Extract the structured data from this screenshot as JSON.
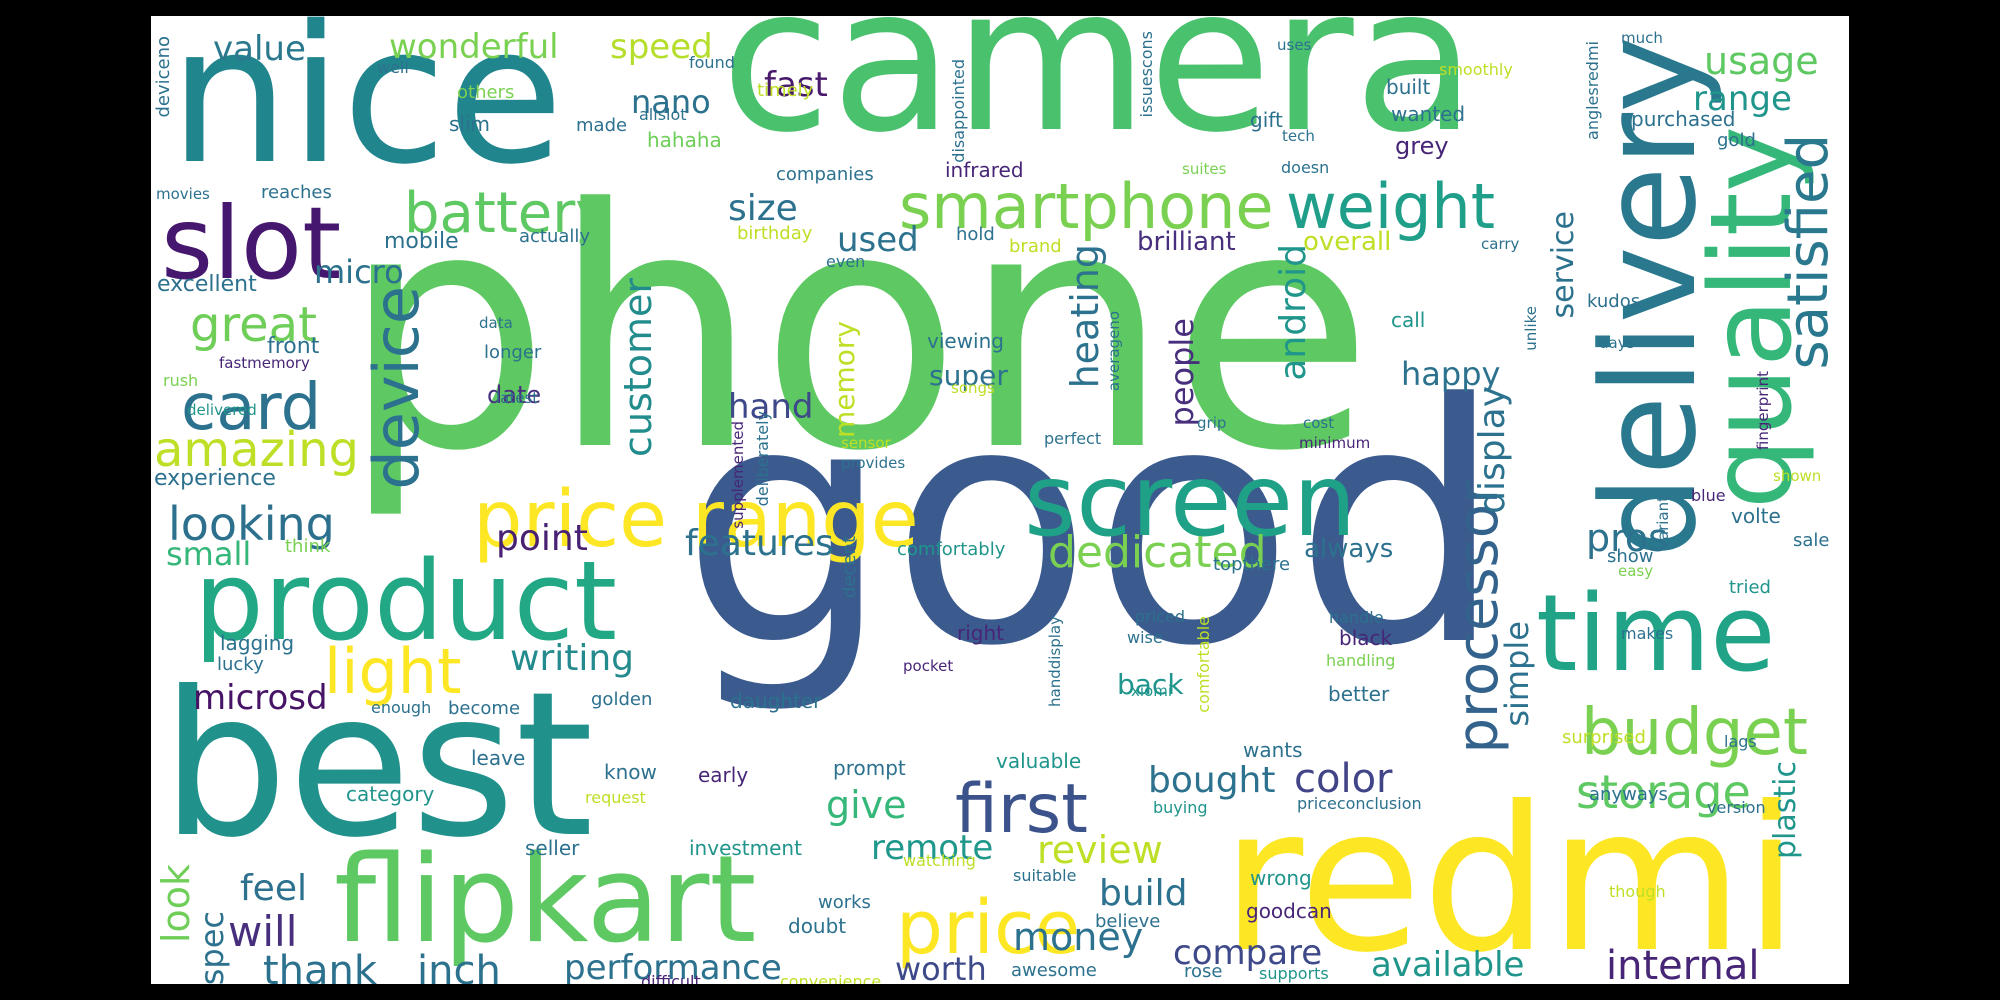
{
  "palette": {
    "yellow": "#fde725",
    "lime": "#b5de2b",
    "lightgreen": "#6ece58",
    "green": "#35b779",
    "teal": "#1f9e89",
    "deepteal": "#26828e",
    "blue": "#31688e",
    "indigo": "#3e4989",
    "purple": "#482878",
    "darkpurple": "#440154"
  },
  "words": [
    {
      "id": "phone",
      "text": "phone"
    },
    {
      "id": "good",
      "text": "good"
    },
    {
      "id": "camera",
      "text": "camera"
    },
    {
      "id": "nice",
      "text": "nice"
    },
    {
      "id": "best",
      "text": "best"
    },
    {
      "id": "redmi",
      "text": "redmi"
    },
    {
      "id": "delivery",
      "text": "delivery"
    },
    {
      "id": "quality",
      "text": "quality"
    },
    {
      "id": "flipkart",
      "text": "flipkart"
    },
    {
      "id": "product",
      "text": "product"
    },
    {
      "id": "screen",
      "text": "screen"
    },
    {
      "id": "price_range",
      "text": "price range"
    },
    {
      "id": "time",
      "text": "time"
    },
    {
      "id": "slot",
      "text": "slot"
    },
    {
      "id": "smartphone",
      "text": "smartphone"
    },
    {
      "id": "weight",
      "text": "weight"
    },
    {
      "id": "battery",
      "text": "battery"
    },
    {
      "id": "device",
      "text": "device"
    },
    {
      "id": "card",
      "text": "card"
    },
    {
      "id": "budget",
      "text": "budget"
    },
    {
      "id": "satisfied",
      "text": "satisfied"
    },
    {
      "id": "processor",
      "text": "processor"
    },
    {
      "id": "price",
      "text": "price"
    },
    {
      "id": "first",
      "text": "first"
    },
    {
      "id": "light",
      "text": "light"
    },
    {
      "id": "storage",
      "text": "storage"
    },
    {
      "id": "amazing",
      "text": "amazing"
    },
    {
      "id": "great",
      "text": "great"
    },
    {
      "id": "looking",
      "text": "looking"
    },
    {
      "id": "customer",
      "text": "customer"
    },
    {
      "id": "dedicated",
      "text": "dedicated"
    },
    {
      "id": "heating",
      "text": "heating"
    },
    {
      "id": "android",
      "text": "android"
    },
    {
      "id": "display",
      "text": "display"
    },
    {
      "id": "usage",
      "text": "usage"
    },
    {
      "id": "range",
      "text": "range"
    },
    {
      "id": "wonderful",
      "text": "wonderful"
    },
    {
      "id": "speed",
      "text": "speed"
    },
    {
      "id": "value",
      "text": "value"
    },
    {
      "id": "fast",
      "text": "fast"
    },
    {
      "id": "nano",
      "text": "nano"
    },
    {
      "id": "size",
      "text": "size"
    },
    {
      "id": "micro",
      "text": "micro"
    },
    {
      "id": "microsd",
      "text": "microsd"
    },
    {
      "id": "writing",
      "text": "writing"
    },
    {
      "id": "features",
      "text": "features"
    },
    {
      "id": "point",
      "text": "point"
    },
    {
      "id": "memory",
      "text": "memory"
    },
    {
      "id": "hand",
      "text": "hand"
    },
    {
      "id": "used",
      "text": "used"
    },
    {
      "id": "people",
      "text": "people"
    },
    {
      "id": "happy",
      "text": "happy"
    },
    {
      "id": "service",
      "text": "service"
    },
    {
      "id": "pros",
      "text": "pros"
    },
    {
      "id": "simple",
      "text": "simple"
    },
    {
      "id": "give",
      "text": "give"
    },
    {
      "id": "color",
      "text": "color"
    },
    {
      "id": "bought",
      "text": "bought"
    },
    {
      "id": "review",
      "text": "review"
    },
    {
      "id": "remote",
      "text": "remote"
    },
    {
      "id": "build",
      "text": "build"
    },
    {
      "id": "money",
      "text": "money"
    },
    {
      "id": "worth",
      "text": "worth"
    },
    {
      "id": "compare",
      "text": "compare"
    },
    {
      "id": "available",
      "text": "available"
    },
    {
      "id": "internal",
      "text": "internal"
    },
    {
      "id": "plastic",
      "text": "plastic"
    },
    {
      "id": "performance",
      "text": "performance"
    },
    {
      "id": "thank",
      "text": "thank"
    },
    {
      "id": "inch",
      "text": "inch"
    },
    {
      "id": "will",
      "text": "will"
    },
    {
      "id": "feel",
      "text": "feel"
    },
    {
      "id": "look",
      "text": "look"
    },
    {
      "id": "spec",
      "text": "spec"
    },
    {
      "id": "small",
      "text": "small"
    },
    {
      "id": "experience",
      "text": "experience"
    },
    {
      "id": "excellent",
      "text": "excellent"
    },
    {
      "id": "mobile",
      "text": "mobile"
    },
    {
      "id": "front",
      "text": "front"
    },
    {
      "id": "date",
      "text": "date"
    },
    {
      "id": "longer",
      "text": "longer"
    },
    {
      "id": "super",
      "text": "super"
    },
    {
      "id": "viewing",
      "text": "viewing"
    },
    {
      "id": "brilliant",
      "text": "brilliant"
    },
    {
      "id": "overall",
      "text": "overall"
    },
    {
      "id": "always",
      "text": "always"
    },
    {
      "id": "back",
      "text": "back"
    },
    {
      "id": "grey",
      "text": "grey"
    },
    {
      "id": "built",
      "text": "built"
    },
    {
      "id": "wanted",
      "text": "wanted"
    },
    {
      "id": "gift",
      "text": "gift"
    },
    {
      "id": "purchased",
      "text": "purchased"
    },
    {
      "id": "gold",
      "text": "gold"
    },
    {
      "id": "much",
      "text": "much"
    },
    {
      "id": "smoothly",
      "text": "smoothly"
    },
    {
      "id": "uses",
      "text": "uses"
    },
    {
      "id": "well",
      "text": "well"
    },
    {
      "id": "found",
      "text": "found"
    },
    {
      "id": "others",
      "text": "others"
    },
    {
      "id": "timely",
      "text": "timely"
    },
    {
      "id": "allslot",
      "text": "allslot"
    },
    {
      "id": "made",
      "text": "made"
    },
    {
      "id": "slim",
      "text": "slim"
    },
    {
      "id": "hahaha",
      "text": "hahaha"
    },
    {
      "id": "deviceno",
      "text": "deviceno"
    },
    {
      "id": "disappointed",
      "text": "disappointed"
    },
    {
      "id": "issuescons",
      "text": "issuescons"
    },
    {
      "id": "anglesredmi",
      "text": "anglesredmi"
    },
    {
      "id": "tech",
      "text": "tech"
    },
    {
      "id": "doesn",
      "text": "doesn"
    },
    {
      "id": "suites",
      "text": "suites"
    },
    {
      "id": "infrared",
      "text": "infrared"
    },
    {
      "id": "companies",
      "text": "companies"
    },
    {
      "id": "reaches",
      "text": "reaches"
    },
    {
      "id": "movies",
      "text": "movies"
    },
    {
      "id": "actually",
      "text": "actually"
    },
    {
      "id": "birthday",
      "text": "birthday"
    },
    {
      "id": "hold",
      "text": "hold"
    },
    {
      "id": "brand",
      "text": "brand"
    },
    {
      "id": "carry",
      "text": "carry"
    },
    {
      "id": "even",
      "text": "even"
    },
    {
      "id": "kudos",
      "text": "kudos"
    },
    {
      "id": "call",
      "text": "call"
    },
    {
      "id": "data",
      "text": "data"
    },
    {
      "id": "rush",
      "text": "rush"
    },
    {
      "id": "fastmemory",
      "text": "fastmemory"
    },
    {
      "id": "delivered",
      "text": "delivered"
    },
    {
      "id": "latest",
      "text": "latest"
    },
    {
      "id": "deliberately",
      "text": "deliberately"
    },
    {
      "id": "songs",
      "text": "songs"
    },
    {
      "id": "averageno",
      "text": "averageno"
    },
    {
      "id": "days",
      "text": "days"
    },
    {
      "id": "unlike",
      "text": "unlike"
    },
    {
      "id": "grip",
      "text": "grip"
    },
    {
      "id": "cost",
      "text": "cost"
    },
    {
      "id": "minimum",
      "text": "minimum"
    },
    {
      "id": "perfect",
      "text": "perfect"
    },
    {
      "id": "sensor",
      "text": "sensor"
    },
    {
      "id": "provides",
      "text": "provides"
    },
    {
      "id": "supplemented",
      "text": "supplemented"
    },
    {
      "id": "fingerprint",
      "text": "fingerprint"
    },
    {
      "id": "shown",
      "text": "shown"
    },
    {
      "id": "blue",
      "text": "blue"
    },
    {
      "id": "variant",
      "text": "variant"
    },
    {
      "id": "volte",
      "text": "volte"
    },
    {
      "id": "sale",
      "text": "sale"
    },
    {
      "id": "think",
      "text": "think"
    },
    {
      "id": "comfortably",
      "text": "comfortably"
    },
    {
      "id": "topthere",
      "text": "topthere"
    },
    {
      "id": "show",
      "text": "show"
    },
    {
      "id": "easy",
      "text": "easy"
    },
    {
      "id": "tried",
      "text": "tried"
    },
    {
      "id": "lagging",
      "text": "lagging"
    },
    {
      "id": "lucky",
      "text": "lucky"
    },
    {
      "id": "decent",
      "text": "decent"
    },
    {
      "id": "right",
      "text": "right"
    },
    {
      "id": "priced",
      "text": "priced"
    },
    {
      "id": "wise",
      "text": "wise"
    },
    {
      "id": "pocket",
      "text": "pocket"
    },
    {
      "id": "handdisplay",
      "text": "handdisplay"
    },
    {
      "id": "comfortable",
      "text": "comfortable"
    },
    {
      "id": "handle",
      "text": "handle"
    },
    {
      "id": "black",
      "text": "black"
    },
    {
      "id": "handling",
      "text": "handling"
    },
    {
      "id": "makes",
      "text": "makes"
    },
    {
      "id": "better",
      "text": "better"
    },
    {
      "id": "xiomi",
      "text": "xiomi"
    },
    {
      "id": "golden",
      "text": "golden"
    },
    {
      "id": "daughter",
      "text": "daughter"
    },
    {
      "id": "enough",
      "text": "enough"
    },
    {
      "id": "become",
      "text": "become"
    },
    {
      "id": "leave",
      "text": "leave"
    },
    {
      "id": "know",
      "text": "know"
    },
    {
      "id": "early",
      "text": "early"
    },
    {
      "id": "prompt",
      "text": "prompt"
    },
    {
      "id": "valuable",
      "text": "valuable"
    },
    {
      "id": "wants",
      "text": "wants"
    },
    {
      "id": "surprised",
      "text": "surprised"
    },
    {
      "id": "lags",
      "text": "lags"
    },
    {
      "id": "category",
      "text": "category"
    },
    {
      "id": "request",
      "text": "request"
    },
    {
      "id": "buying",
      "text": "buying"
    },
    {
      "id": "priceconclusion",
      "text": "priceconclusion"
    },
    {
      "id": "anyways",
      "text": "anyways"
    },
    {
      "id": "version",
      "text": "version"
    },
    {
      "id": "seller",
      "text": "seller"
    },
    {
      "id": "investment",
      "text": "investment"
    },
    {
      "id": "watching",
      "text": "watching"
    },
    {
      "id": "suitable",
      "text": "suitable"
    },
    {
      "id": "wrong",
      "text": "wrong"
    },
    {
      "id": "works",
      "text": "works"
    },
    {
      "id": "doubt",
      "text": "doubt"
    },
    {
      "id": "believe",
      "text": "believe"
    },
    {
      "id": "goodcan",
      "text": "goodcan"
    },
    {
      "id": "though",
      "text": "though"
    },
    {
      "id": "rose",
      "text": "rose"
    },
    {
      "id": "awesome",
      "text": "awesome"
    },
    {
      "id": "supports",
      "text": "supports"
    },
    {
      "id": "difficult",
      "text": "difficult"
    },
    {
      "id": "convenience",
      "text": "convenience"
    }
  ]
}
